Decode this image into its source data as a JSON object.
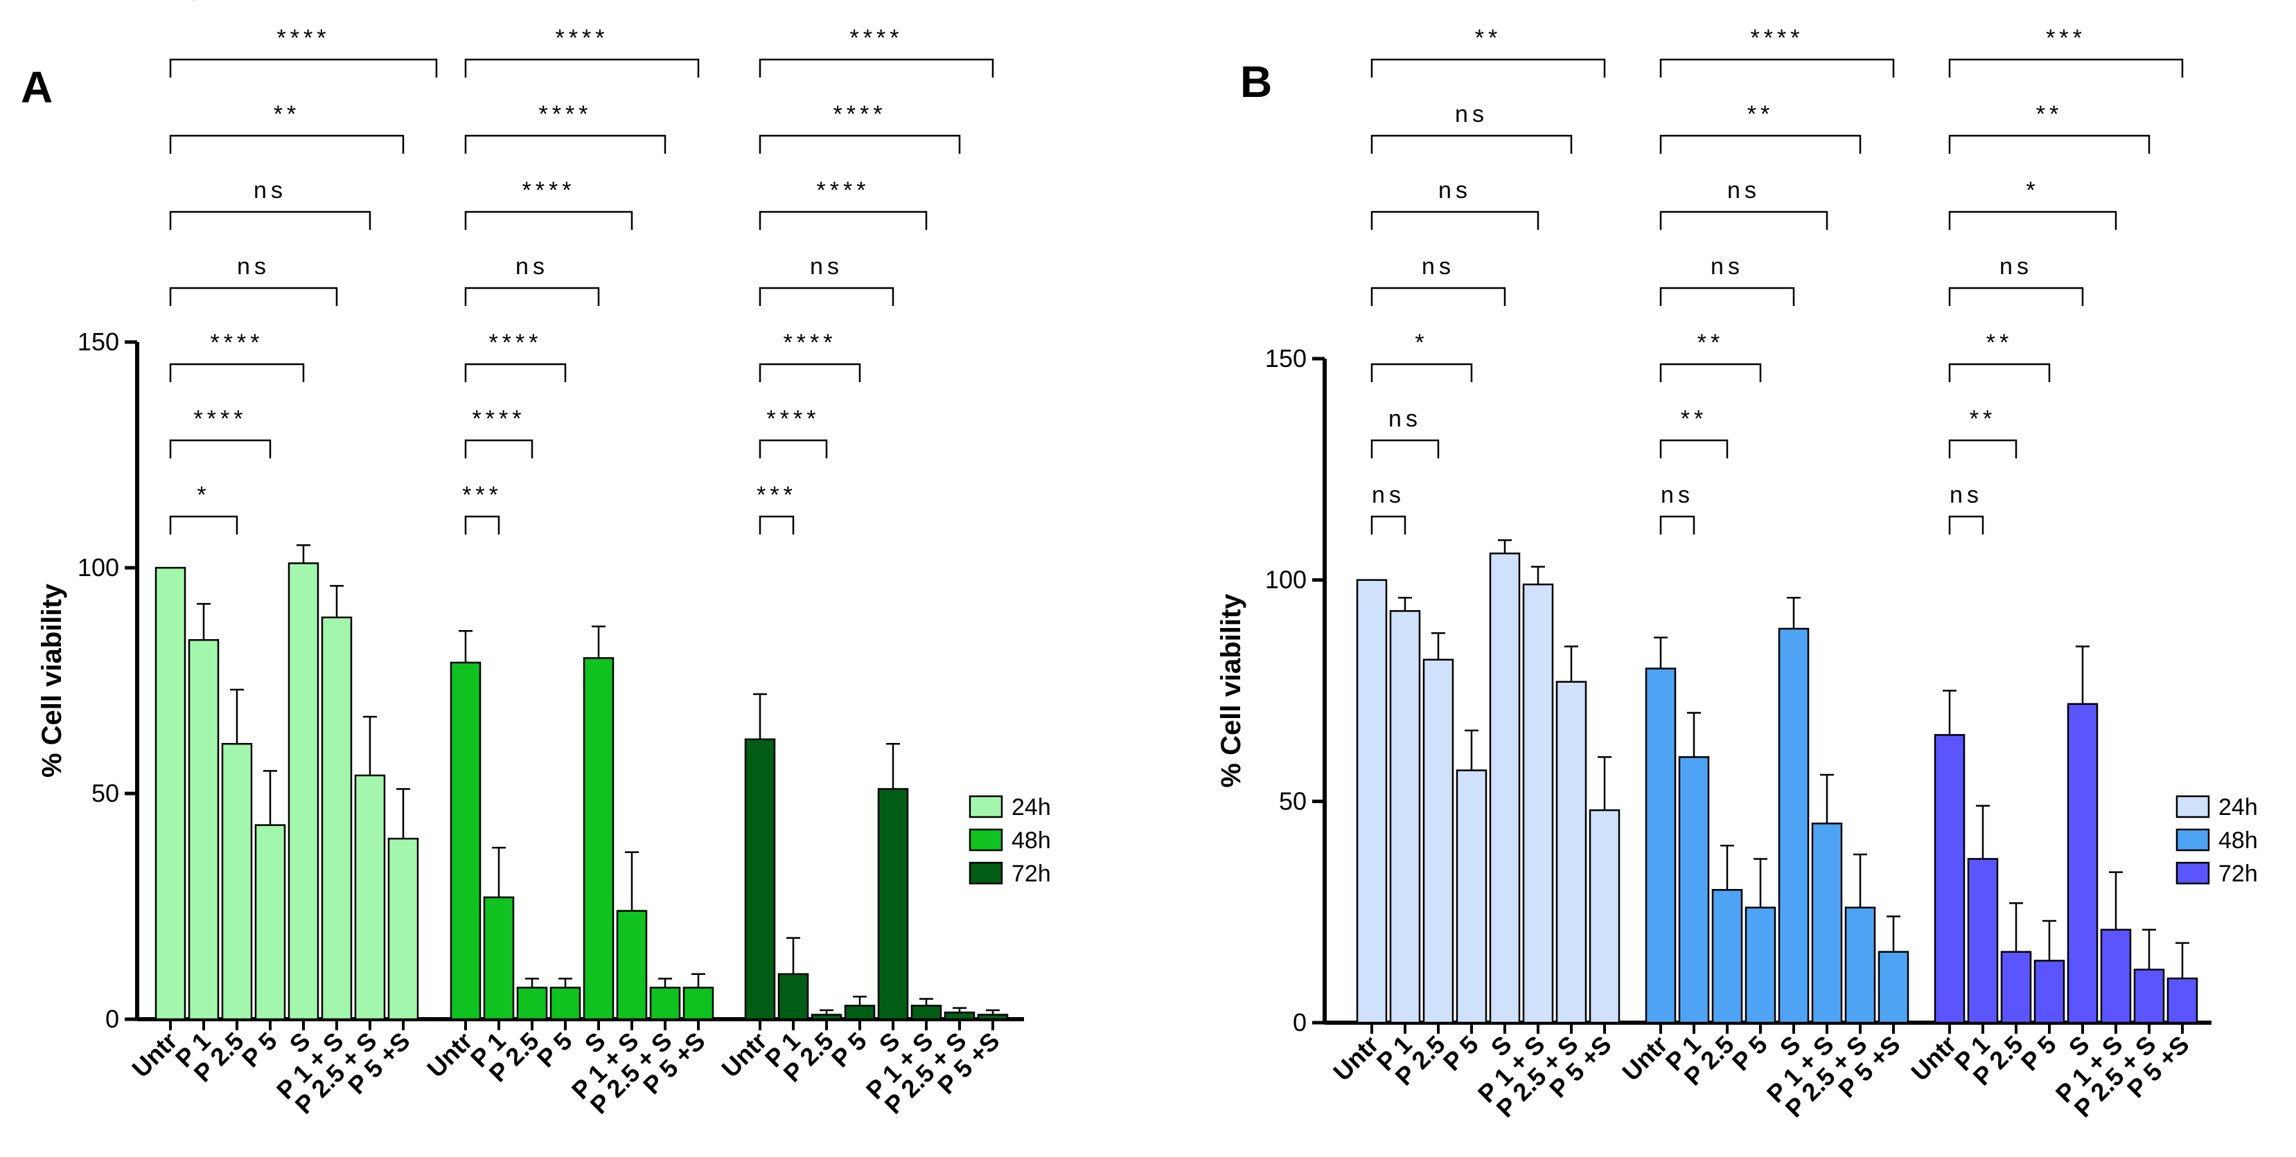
{
  "chart_data": [
    {
      "panel": "A",
      "type": "bar",
      "ylabel": "% Cell viability",
      "ylim": [
        0,
        150
      ],
      "yticks": [
        0,
        50,
        100,
        150
      ],
      "categories": [
        "Untr",
        "P 1",
        "P 2.5",
        "P 5",
        "S",
        "P 1 + S",
        "P 2.5 + S",
        "P 5 +S"
      ],
      "legend_position": "right",
      "series": [
        {
          "name": "24h",
          "color": "#a3f7ac",
          "values": [
            100,
            84,
            61,
            43,
            101,
            89,
            54,
            40
          ],
          "errors": [
            0,
            8,
            12,
            12,
            4,
            7,
            13,
            11
          ]
        },
        {
          "name": "48h",
          "color": "#0fc21f",
          "values": [
            79,
            27,
            7,
            7,
            80,
            24,
            7,
            7
          ],
          "errors": [
            7,
            11,
            2,
            2,
            7,
            13,
            2,
            3
          ]
        },
        {
          "name": "72h",
          "color": "#005e14",
          "values": [
            62,
            10,
            1,
            3,
            51,
            3,
            1.5,
            1
          ],
          "errors": [
            10,
            8,
            1,
            2,
            10,
            1.5,
            1,
            1
          ]
        }
      ],
      "comparisons": [
        [
          "ns",
          "*",
          "****",
          "****",
          "ns",
          "ns",
          "**",
          "****"
        ],
        [
          "***",
          "****",
          "****",
          "ns",
          "****",
          "****",
          "****"
        ],
        [
          "***",
          "****",
          "****",
          "ns",
          "****",
          "****",
          "****"
        ]
      ]
    },
    {
      "panel": "B",
      "type": "bar",
      "ylabel": "% Cell viability",
      "ylim": [
        0,
        150
      ],
      "yticks": [
        0,
        50,
        100,
        150
      ],
      "categories": [
        "Untr",
        "P 1",
        "P 2.5",
        "P 5",
        "S",
        "P 1 + S",
        "P 2.5 + S",
        "P 5 +S"
      ],
      "legend_position": "right",
      "series": [
        {
          "name": "24h",
          "color": "#cfe1fb",
          "values": [
            100,
            93,
            82,
            57,
            106,
            99,
            77,
            48
          ],
          "errors": [
            0,
            3,
            6,
            9,
            3,
            4,
            8,
            12
          ]
        },
        {
          "name": "48h",
          "color": "#4fa3f4",
          "values": [
            80,
            60,
            30,
            26,
            89,
            45,
            26,
            16
          ],
          "errors": [
            7,
            10,
            10,
            11,
            7,
            11,
            12,
            8
          ]
        },
        {
          "name": "72h",
          "color": "#5a55ff",
          "values": [
            65,
            37,
            16,
            14,
            72,
            21,
            12,
            10
          ],
          "errors": [
            10,
            12,
            11,
            9,
            13,
            13,
            9,
            8
          ]
        }
      ],
      "comparisons": [
        [
          "ns",
          "ns",
          "*",
          "ns",
          "ns",
          "ns",
          "**"
        ],
        [
          "ns",
          "**",
          "**",
          "ns",
          "ns",
          "**",
          "****"
        ],
        [
          "ns",
          "**",
          "**",
          "ns",
          "*",
          "**",
          "***"
        ]
      ]
    }
  ]
}
